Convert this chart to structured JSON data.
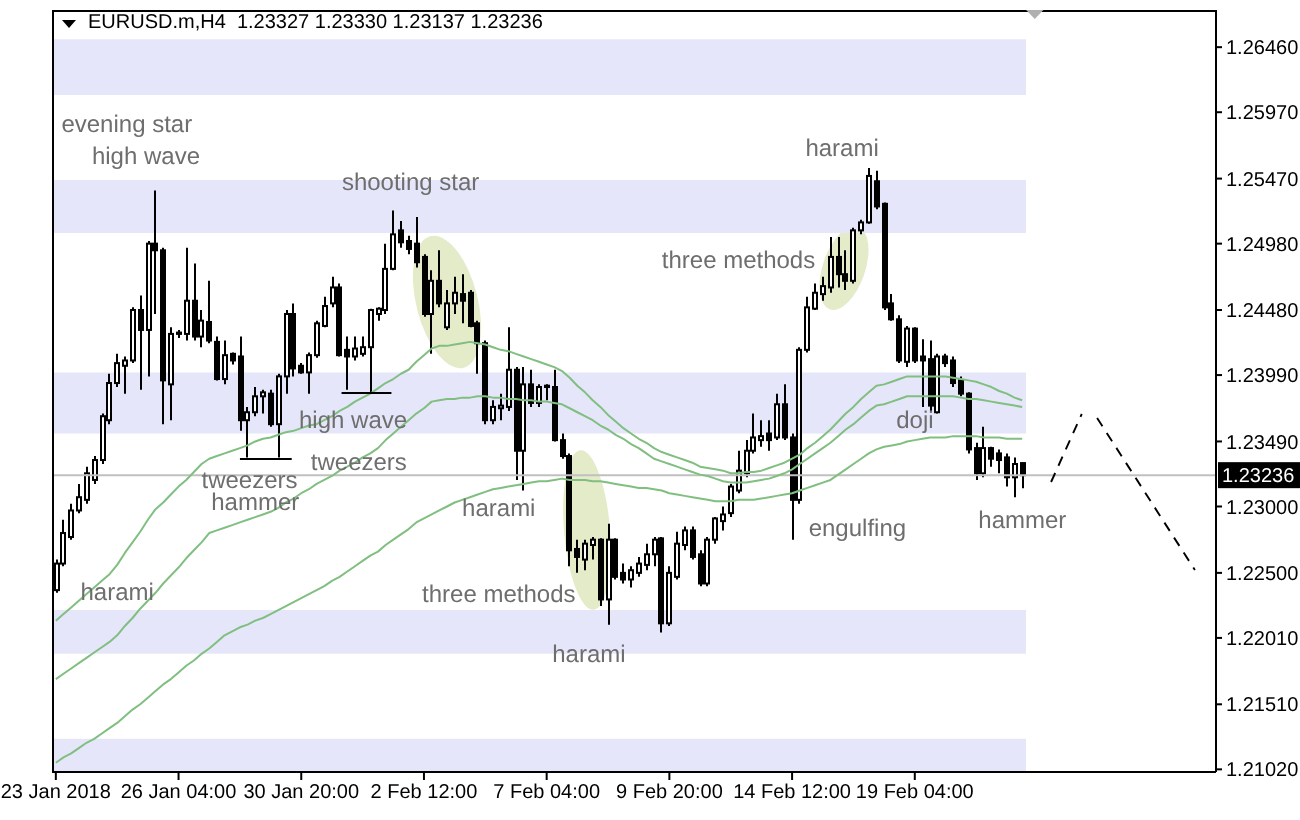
{
  "chart_data": {
    "type": "candlestick",
    "title": "EURUSD.m,H4  1.23327 1.23330 1.23137 1.23236",
    "color": "#000000",
    "categories": [
      "23 Jan 2018",
      null,
      null,
      null,
      null,
      null,
      null,
      null,
      null,
      null,
      null,
      null,
      null,
      null,
      null,
      null,
      "26 Jan 04:00",
      null,
      null,
      null,
      null,
      null,
      null,
      null,
      null,
      null,
      null,
      null,
      null,
      null,
      null,
      null,
      "30 Jan 20:00",
      null,
      null,
      null,
      null,
      null,
      null,
      null,
      null,
      null,
      null,
      null,
      null,
      null,
      null,
      null,
      "2 Feb 12:00",
      null,
      null,
      null,
      null,
      null,
      null,
      null,
      null,
      null,
      null,
      null,
      null,
      null,
      null,
      null,
      "7 Feb 04:00",
      null,
      null,
      null,
      null,
      null,
      null,
      null,
      null,
      null,
      null,
      null,
      null,
      null,
      null,
      null,
      "9 Feb 20:00",
      null,
      null,
      null,
      null,
      null,
      null,
      null,
      null,
      null,
      null,
      null,
      null,
      null,
      null,
      null,
      "14 Feb 12:00",
      null,
      null,
      null,
      null,
      null,
      null,
      null,
      null,
      null,
      null,
      null,
      null,
      null,
      null,
      null,
      "19 Feb 04:00",
      null,
      null,
      null,
      null,
      null,
      null,
      null,
      null,
      null,
      null,
      null,
      null,
      null,
      null
    ],
    "ohlc": [
      [
        1.2237,
        1.226,
        1.2235,
        1.2257
      ],
      [
        1.2257,
        1.229,
        1.2255,
        1.228
      ],
      [
        1.2277,
        1.2302,
        1.2275,
        1.2297
      ],
      [
        1.2297,
        1.2317,
        1.2295,
        1.2307
      ],
      [
        1.2305,
        1.233,
        1.2302,
        1.2325
      ],
      [
        1.232,
        1.2338,
        1.2317,
        1.2335
      ],
      [
        1.2335,
        1.237,
        1.2332,
        1.2368
      ],
      [
        1.2365,
        1.24,
        1.2362,
        1.2393
      ],
      [
        1.2393,
        1.2415,
        1.239,
        1.2408
      ],
      [
        1.2406,
        1.2413,
        1.2385,
        1.241
      ],
      [
        1.241,
        1.245,
        1.2408,
        1.2448
      ],
      [
        1.2448,
        1.2459,
        1.2388,
        1.2433
      ],
      [
        1.2433,
        1.25,
        1.2398,
        1.2498
      ],
      [
        1.2498,
        1.2538,
        1.2445,
        1.2493
      ],
      [
        1.2493,
        1.2495,
        1.2362,
        1.2395
      ],
      [
        1.2392,
        1.2435,
        1.2365,
        1.243
      ],
      [
        1.243,
        1.2433,
        1.2427,
        1.2431
      ],
      [
        1.243,
        1.2495,
        1.2425,
        1.2455
      ],
      [
        1.2455,
        1.2483,
        1.2425,
        1.2428
      ],
      [
        1.2428,
        1.2448,
        1.242,
        1.244
      ],
      [
        1.2439,
        1.247,
        1.2423,
        1.2425
      ],
      [
        1.2424,
        1.2428,
        1.2395,
        1.2396
      ],
      [
        1.2396,
        1.2425,
        1.2392,
        1.2414
      ],
      [
        1.2415,
        1.2416,
        1.2407,
        1.241
      ],
      [
        1.2413,
        1.2428,
        1.2357,
        1.2365
      ],
      [
        1.2365,
        1.2375,
        1.2337,
        1.2371
      ],
      [
        1.2371,
        1.239,
        1.2368,
        1.2383
      ],
      [
        1.2383,
        1.2388,
        1.237,
        1.2386
      ],
      [
        1.2385,
        1.2388,
        1.236,
        1.2362
      ],
      [
        1.2362,
        1.24,
        1.2337,
        1.2398
      ],
      [
        1.2398,
        1.2448,
        1.2385,
        1.2445
      ],
      [
        1.2445,
        1.2453,
        1.2398,
        1.2404
      ],
      [
        1.2406,
        1.2408,
        1.24,
        1.2401
      ],
      [
        1.2401,
        1.2416,
        1.2385,
        1.2414
      ],
      [
        1.2414,
        1.244,
        1.2412,
        1.2438
      ],
      [
        1.2436,
        1.2458,
        1.2435,
        1.2451
      ],
      [
        1.2453,
        1.2473,
        1.245,
        1.2465
      ],
      [
        1.2465,
        1.2468,
        1.2413,
        1.2414
      ],
      [
        1.2418,
        1.2428,
        1.2388,
        1.2413
      ],
      [
        1.2413,
        1.2428,
        1.241,
        1.2419
      ],
      [
        1.2415,
        1.2428,
        1.2413,
        1.242
      ],
      [
        1.242,
        1.2449,
        1.2385,
        1.2448
      ],
      [
        1.2445,
        1.245,
        1.244,
        1.2449
      ],
      [
        1.2448,
        1.2498,
        1.2445,
        1.2479
      ],
      [
        1.2479,
        1.2523,
        1.2478,
        1.2505
      ],
      [
        1.2508,
        1.2515,
        1.2495,
        1.2499
      ],
      [
        1.25,
        1.2504,
        1.249,
        1.2494
      ],
      [
        1.2498,
        1.2518,
        1.248,
        1.2484
      ],
      [
        1.2488,
        1.249,
        1.2443,
        1.2445
      ],
      [
        1.2445,
        1.2478,
        1.2415,
        1.247
      ],
      [
        1.247,
        1.2493,
        1.245,
        1.2453
      ],
      [
        1.2435,
        1.2463,
        1.2433,
        1.2453
      ],
      [
        1.2453,
        1.2473,
        1.2445,
        1.2461
      ],
      [
        1.246,
        1.2475,
        1.2438,
        1.2455
      ],
      [
        1.2461,
        1.2463,
        1.2435,
        1.2436
      ],
      [
        1.2438,
        1.244,
        1.24,
        1.2423
      ],
      [
        1.2423,
        1.2425,
        1.2362,
        1.2365
      ],
      [
        1.2365,
        1.238,
        1.2362,
        1.2375
      ],
      [
        1.2374,
        1.2385,
        1.2365,
        1.2376
      ],
      [
        1.2375,
        1.2435,
        1.2372,
        1.2403
      ],
      [
        1.2403,
        1.2405,
        1.232,
        1.2342
      ],
      [
        1.2342,
        1.2405,
        1.2312,
        1.2392
      ],
      [
        1.2392,
        1.2403,
        1.2375,
        1.2378
      ],
      [
        1.2378,
        1.2392,
        1.2375,
        1.239
      ],
      [
        1.239,
        1.2392,
        1.238,
        1.2391
      ],
      [
        1.239,
        1.2403,
        1.2349,
        1.235
      ],
      [
        1.235,
        1.2355,
        1.2336,
        1.2338
      ],
      [
        1.2338,
        1.234,
        1.2255,
        1.2267
      ],
      [
        1.2268,
        1.2275,
        1.225,
        1.2262
      ],
      [
        1.226,
        1.2275,
        1.2252,
        1.2272
      ],
      [
        1.2271,
        1.2277,
        1.226,
        1.2275
      ],
      [
        1.2275,
        1.2276,
        1.2225,
        1.223
      ],
      [
        1.223,
        1.2287,
        1.2211,
        1.2275
      ],
      [
        1.2275,
        1.2276,
        1.2245,
        1.2247
      ],
      [
        1.225,
        1.2257,
        1.2242,
        1.2245
      ],
      [
        1.2245,
        1.2255,
        1.2239,
        1.2252
      ],
      [
        1.225,
        1.2262,
        1.2247,
        1.2257
      ],
      [
        1.2256,
        1.2272,
        1.2252,
        1.2264
      ],
      [
        1.2264,
        1.2277,
        1.2255,
        1.2275
      ],
      [
        1.2276,
        1.2277,
        1.2205,
        1.2212
      ],
      [
        1.2212,
        1.2255,
        1.221,
        1.225
      ],
      [
        1.2247,
        1.2281,
        1.2245,
        1.2272
      ],
      [
        1.2271,
        1.2285,
        1.2267,
        1.2282
      ],
      [
        1.2282,
        1.2285,
        1.226,
        1.2262
      ],
      [
        1.2264,
        1.2267,
        1.224,
        1.2242
      ],
      [
        1.2242,
        1.2277,
        1.224,
        1.2275
      ],
      [
        1.2275,
        1.2292,
        1.2272,
        1.2291
      ],
      [
        1.2289,
        1.23,
        1.2282,
        1.2294
      ],
      [
        1.2295,
        1.2317,
        1.2292,
        1.2315
      ],
      [
        1.2312,
        1.2342,
        1.231,
        1.2327
      ],
      [
        1.2325,
        1.235,
        1.2322,
        1.2342
      ],
      [
        1.2342,
        1.237,
        1.234,
        1.2352
      ],
      [
        1.235,
        1.2365,
        1.2345,
        1.2353
      ],
      [
        1.2355,
        1.2365,
        1.2342,
        1.235
      ],
      [
        1.2352,
        1.2385,
        1.235,
        1.2377
      ],
      [
        1.2377,
        1.2392,
        1.235,
        1.2352
      ],
      [
        1.2352,
        1.2355,
        1.2275,
        1.2305
      ],
      [
        1.2305,
        1.242,
        1.2302,
        1.2418
      ],
      [
        1.2418,
        1.2458,
        1.2416,
        1.245
      ],
      [
        1.2449,
        1.2468,
        1.2448,
        1.2461
      ],
      [
        1.246,
        1.2473,
        1.2455,
        1.2466
      ],
      [
        1.2465,
        1.2503,
        1.2461,
        1.2488
      ],
      [
        1.2488,
        1.2503,
        1.2465,
        1.2475
      ],
      [
        1.2475,
        1.2493,
        1.2463,
        1.247
      ],
      [
        1.247,
        1.251,
        1.2468,
        1.2508
      ],
      [
        1.2508,
        1.2516,
        1.2505,
        1.2514
      ],
      [
        1.2514,
        1.2555,
        1.2513,
        1.2549
      ],
      [
        1.2545,
        1.2553,
        1.2524,
        1.2526
      ],
      [
        1.2528,
        1.2529,
        1.2448,
        1.245
      ],
      [
        1.2453,
        1.246,
        1.244,
        1.2441
      ],
      [
        1.2441,
        1.2444,
        1.2408,
        1.241
      ],
      [
        1.2409,
        1.2436,
        1.2405,
        1.2434
      ],
      [
        1.2434,
        1.2435,
        1.2408,
        1.241
      ],
      [
        1.2413,
        1.2426,
        1.2375,
        1.241
      ],
      [
        1.2411,
        1.2425,
        1.2371,
        1.2376
      ],
      [
        1.2371,
        1.2415,
        1.237,
        1.2413
      ],
      [
        1.2413,
        1.2415,
        1.2405,
        1.2408
      ],
      [
        1.241,
        1.2413,
        1.239,
        1.2393
      ],
      [
        1.2395,
        1.2398,
        1.2383,
        1.2385
      ],
      [
        1.2385,
        1.2386,
        1.234,
        1.2343
      ],
      [
        1.2344,
        1.2348,
        1.232,
        1.2325
      ],
      [
        1.2325,
        1.236,
        1.2322,
        1.2344
      ],
      [
        1.2344,
        1.2345,
        1.233,
        1.2336
      ],
      [
        1.234,
        1.2343,
        1.2325,
        1.2335
      ],
      [
        1.2337,
        1.234,
        1.2315,
        1.2322
      ],
      [
        1.2322,
        1.2337,
        1.2307,
        1.2332
      ],
      [
        1.23327,
        1.2333,
        1.23137,
        1.23236
      ]
    ],
    "series": [
      {
        "type": "line",
        "color": "#80bf80",
        "values": [
          1.2214,
          1.2219,
          1.2224,
          1.2229,
          1.2234,
          1.2239,
          1.2244,
          1.2249,
          1.2256,
          1.2265,
          1.2273,
          1.2281,
          1.229,
          1.2298,
          1.2303,
          1.2309,
          1.2315,
          1.232,
          1.2326,
          1.2332,
          1.2336,
          1.2338,
          1.234,
          1.2342,
          1.2344,
          1.2346,
          1.2349,
          1.2351,
          1.2352,
          1.2354,
          1.2356,
          1.2357,
          1.2359,
          1.2361,
          1.2362,
          1.2365,
          1.2368,
          1.2372,
          1.2375,
          1.2379,
          1.2382,
          1.2385,
          1.2389,
          1.2393,
          1.2396,
          1.24,
          1.2403,
          1.2409,
          1.2414,
          1.2419,
          1.2421,
          1.2421,
          1.2422,
          1.2423,
          1.2424,
          1.2423,
          1.2422,
          1.242,
          1.2418,
          1.2417,
          1.2415,
          1.2413,
          1.2411,
          1.2409,
          1.2407,
          1.2405,
          1.2402,
          1.2397,
          1.2391,
          1.2386,
          1.238,
          1.2375,
          1.2369,
          1.2364,
          1.2359,
          1.2355,
          1.2351,
          1.2348,
          1.2344,
          1.2341,
          1.2339,
          1.2337,
          1.2335,
          1.2333,
          1.233,
          1.2329,
          1.2328,
          1.2327,
          1.2325,
          1.2325,
          1.2326,
          1.2326,
          1.2327,
          1.2329,
          1.2331,
          1.2333,
          1.2336,
          1.2339,
          1.2344,
          1.2348,
          1.2353,
          1.2358,
          1.2364,
          1.237,
          1.2375,
          1.2381,
          1.2386,
          1.2391,
          1.2392,
          1.2394,
          1.2396,
          1.2398,
          1.2398,
          1.2398,
          1.2398,
          1.2398,
          1.2398,
          1.2397,
          1.2396,
          1.2395,
          1.2394,
          1.2392,
          1.239,
          1.2387,
          1.2385,
          1.2382,
          1.238
        ]
      },
      {
        "type": "line",
        "color": "#80bf80",
        "values": [
          1.217,
          1.2174,
          1.2178,
          1.2182,
          1.2186,
          1.219,
          1.2194,
          1.2198,
          1.2203,
          1.221,
          1.2216,
          1.2223,
          1.2229,
          1.2235,
          1.2242,
          1.2248,
          1.2254,
          1.2261,
          1.2267,
          1.2273,
          1.228,
          1.2282,
          1.2284,
          1.2286,
          1.2288,
          1.229,
          1.2292,
          1.2294,
          1.2296,
          1.2299,
          1.2303,
          1.2306,
          1.231,
          1.2313,
          1.2317,
          1.232,
          1.2323,
          1.2327,
          1.233,
          1.2333,
          1.2337,
          1.234,
          1.2344,
          1.235,
          1.2355,
          1.236,
          1.2365,
          1.237,
          1.2374,
          1.2379,
          1.238,
          1.2381,
          1.2381,
          1.2382,
          1.2382,
          1.2383,
          1.2383,
          1.2382,
          1.2382,
          1.2381,
          1.2381,
          1.238,
          1.238,
          1.2379,
          1.2379,
          1.2378,
          1.2377,
          1.2374,
          1.2371,
          1.2368,
          1.2365,
          1.2361,
          1.2358,
          1.2354,
          1.2351,
          1.2347,
          1.2344,
          1.234,
          1.2336,
          1.2334,
          1.2332,
          1.233,
          1.2328,
          1.2326,
          1.2324,
          1.2323,
          1.2321,
          1.2319,
          1.2318,
          1.2318,
          1.2318,
          1.2319,
          1.232,
          1.2321,
          1.2323,
          1.2325,
          1.2328,
          1.2332,
          1.2336,
          1.234,
          1.2344,
          1.2348,
          1.2353,
          1.2358,
          1.2362,
          1.2367,
          1.2372,
          1.2376,
          1.2377,
          1.2379,
          1.2381,
          1.2383,
          1.2383,
          1.2383,
          1.2383,
          1.2383,
          1.2383,
          1.2383,
          1.2382,
          1.2381,
          1.2381,
          1.238,
          1.2379,
          1.2378,
          1.2377,
          1.2376,
          1.2375
        ]
      },
      {
        "type": "line",
        "color": "#80bf80",
        "values": [
          1.2107,
          1.2111,
          1.2114,
          1.2118,
          1.2122,
          1.2125,
          1.2129,
          1.2133,
          1.2137,
          1.2142,
          1.2147,
          1.2151,
          1.2156,
          1.2161,
          1.2166,
          1.217,
          1.2175,
          1.218,
          1.2184,
          1.2189,
          1.2193,
          1.2198,
          1.2203,
          1.2206,
          1.2209,
          1.2211,
          1.2214,
          1.2216,
          1.2219,
          1.2222,
          1.2225,
          1.2228,
          1.2231,
          1.2234,
          1.2237,
          1.224,
          1.2244,
          1.2247,
          1.2251,
          1.2255,
          1.2259,
          1.2263,
          1.2266,
          1.2271,
          1.2275,
          1.2279,
          1.2283,
          1.2288,
          1.2291,
          1.2294,
          1.2297,
          1.23,
          1.2303,
          1.2305,
          1.2307,
          1.2309,
          1.2311,
          1.2313,
          1.2314,
          1.2315,
          1.2316,
          1.2317,
          1.2318,
          1.2319,
          1.2319,
          1.232,
          1.2321,
          1.232,
          1.232,
          1.232,
          1.2319,
          1.2319,
          1.2318,
          1.2317,
          1.2316,
          1.2315,
          1.2314,
          1.2314,
          1.2313,
          1.2312,
          1.231,
          1.2309,
          1.2308,
          1.2307,
          1.2306,
          1.2305,
          1.2304,
          1.2304,
          1.2304,
          1.2305,
          1.2305,
          1.2305,
          1.2306,
          1.2307,
          1.2308,
          1.2309,
          1.231,
          1.2312,
          1.2314,
          1.2316,
          1.2318,
          1.232,
          1.2324,
          1.2328,
          1.2332,
          1.2336,
          1.234,
          1.2343,
          1.2345,
          1.2346,
          1.2347,
          1.2349,
          1.235,
          1.2351,
          1.2352,
          1.2352,
          1.2352,
          1.2353,
          1.2353,
          1.2353,
          1.2353,
          1.2352,
          1.2352,
          1.2352,
          1.2351,
          1.2351,
          1.2351
        ]
      }
    ],
    "ylim": [
      1.21,
      1.2674
    ],
    "yticks": [
      {
        "value": 1.2646,
        "label": "1.26460"
      },
      {
        "value": 1.2597,
        "label": "1.25970"
      },
      {
        "value": 1.2547,
        "label": "1.25470"
      },
      {
        "value": 1.2498,
        "label": "1.24980"
      },
      {
        "value": 1.2448,
        "label": "1.24480"
      },
      {
        "value": 1.2399,
        "label": "1.23990"
      },
      {
        "value": 1.2349,
        "label": "1.23490"
      },
      {
        "value": 1.23,
        "label": "1.23000"
      },
      {
        "value": 1.225,
        "label": "1.22500"
      },
      {
        "value": 1.2201,
        "label": "1.22010"
      },
      {
        "value": 1.2151,
        "label": "1.21510"
      },
      {
        "value": 1.2102,
        "label": "1.21020"
      }
    ],
    "ref_lines": [
      {
        "axis": "y",
        "value": 1.23236,
        "label": "1.23236",
        "color": "#c0c0c0"
      }
    ],
    "bands": [
      {
        "axis": "y",
        "from": 1.261,
        "to": 1.2652,
        "color": "#e6e6fa"
      },
      {
        "axis": "y",
        "from": 1.2506,
        "to": 1.2546,
        "color": "#e6e6fa"
      },
      {
        "axis": "y",
        "from": 1.2355,
        "to": 1.2401,
        "color": "#e6e6fa"
      },
      {
        "axis": "y",
        "from": 1.2189,
        "to": 1.2222,
        "color": "#e6e6fa"
      },
      {
        "axis": "y",
        "from": 1.21,
        "to": 1.2125,
        "color": "#e6e6fa"
      }
    ],
    "annotations": [
      "evening star",
      "high wave",
      "shooting star",
      "harami",
      "three methods",
      "high wave",
      "tweezers",
      "tweezers",
      "hammer",
      "harami",
      "harami",
      "three methods",
      "harami",
      "engulfing",
      "doji",
      "hammer"
    ]
  }
}
